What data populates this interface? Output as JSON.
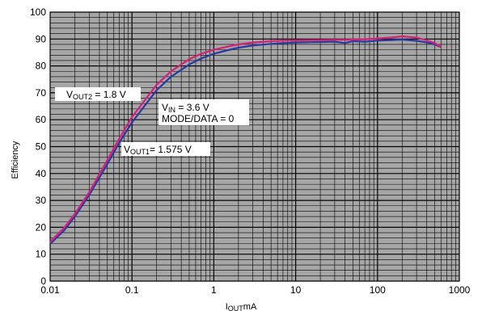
{
  "chart_data": {
    "type": "line",
    "xscale": "log",
    "xlim": [
      0.01,
      1000
    ],
    "ylim": [
      0,
      100
    ],
    "grid": true,
    "ylabel": "Efficiency",
    "xlabel": {
      "sub": "OUT",
      "prefix": "I",
      "suffix": "mA"
    },
    "xticks": [
      0.01,
      0.1,
      1,
      10,
      100,
      1000
    ],
    "xtick_labels": [
      "0.01",
      "0.1",
      "1",
      "10",
      "100",
      "1000"
    ],
    "yticks": [
      0,
      10,
      20,
      30,
      40,
      50,
      60,
      70,
      80,
      90,
      100
    ],
    "ytick_labels": [
      "0",
      "10",
      "20",
      "30",
      "40",
      "50",
      "60",
      "70",
      "80",
      "90",
      "100"
    ],
    "colors": {
      "plot_bg": "#a6a6a6",
      "grid": "#000000",
      "series_vout2": "#d6217a",
      "series_vout1": "#2a3a9f"
    },
    "series": [
      {
        "key": "vout2",
        "x": [
          0.01,
          0.015,
          0.02,
          0.03,
          0.05,
          0.07,
          0.1,
          0.15,
          0.2,
          0.3,
          0.5,
          0.7,
          1,
          1.5,
          2,
          3,
          5,
          7,
          10,
          20,
          30,
          40,
          50,
          70,
          100,
          150,
          200,
          300,
          400,
          500,
          600
        ],
        "values": [
          14.5,
          20,
          25,
          33,
          45,
          53,
          61,
          68,
          73,
          78,
          82.5,
          84.5,
          86,
          87.2,
          88,
          88.7,
          89.2,
          89.4,
          89.5,
          89.6,
          89.7,
          89.7,
          89.8,
          89.9,
          90.2,
          90.6,
          91,
          90.5,
          89.5,
          88.5,
          87
        ]
      },
      {
        "key": "vout1",
        "x": [
          0.01,
          0.015,
          0.02,
          0.03,
          0.05,
          0.07,
          0.1,
          0.15,
          0.2,
          0.3,
          0.5,
          0.7,
          1,
          1.5,
          2,
          3,
          5,
          7,
          10,
          20,
          30,
          40,
          50,
          70,
          100,
          150,
          200,
          300,
          400,
          500,
          600
        ],
        "values": [
          13.8,
          19,
          24,
          32,
          43.5,
          51.5,
          59,
          66,
          71,
          76,
          80.5,
          82.8,
          84.5,
          85.9,
          86.8,
          87.6,
          88.2,
          88.5,
          88.7,
          88.9,
          89,
          88.5,
          89.2,
          89,
          89.4,
          89.6,
          89.8,
          89.3,
          88.7,
          88,
          87
        ]
      }
    ],
    "annotations": [
      {
        "key": "vout2_label",
        "parts": [
          {
            "t": "V"
          },
          {
            "t": "OUT2",
            "sub": true
          },
          {
            "t": " = 1.8 V"
          }
        ]
      },
      {
        "key": "vin_label",
        "parts": [
          {
            "t": "V"
          },
          {
            "t": "IN",
            "sub": true
          },
          {
            "t": " = 3.6 V"
          }
        ]
      },
      {
        "key": "mode_label",
        "parts": [
          {
            "t": "MODE/DATA = 0"
          }
        ]
      },
      {
        "key": "vout1_label",
        "parts": [
          {
            "t": "V"
          },
          {
            "t": "OUT1",
            "sub": true
          },
          {
            "t": "= 1.575 V"
          }
        ]
      }
    ]
  }
}
